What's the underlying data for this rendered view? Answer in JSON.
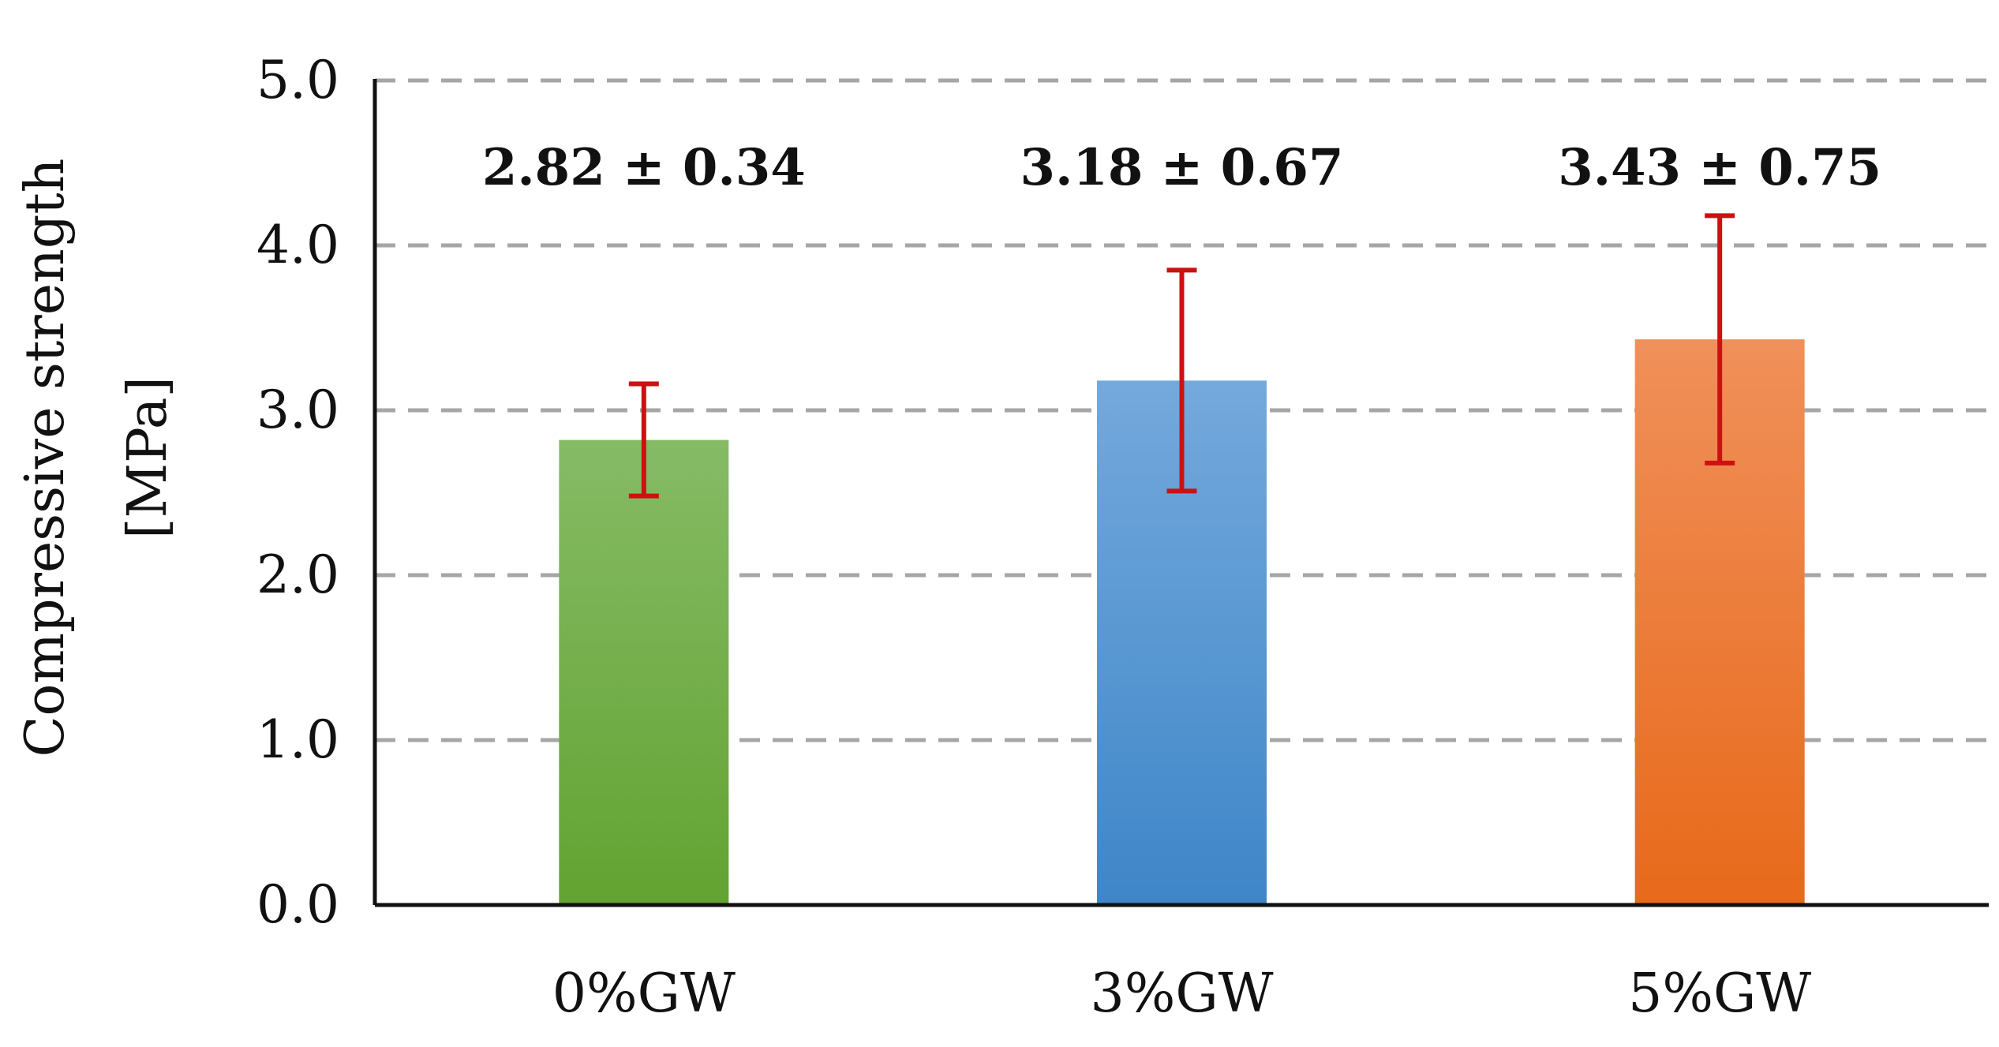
{
  "chart_data": {
    "type": "bar",
    "title": "",
    "xlabel": "",
    "ylabel_line1": "Compressive strength",
    "ylabel_line2": "[MPa]",
    "ylim": [
      0,
      5
    ],
    "yticks": [
      "0.0",
      "1.0",
      "2.0",
      "3.0",
      "4.0",
      "5.0"
    ],
    "grid": "horizontal dashed",
    "categories": [
      "0%GW",
      "3%GW",
      "5%GW"
    ],
    "values": [
      2.82,
      3.18,
      3.43
    ],
    "errors": [
      0.34,
      0.67,
      0.75
    ],
    "data_labels": [
      "2.82 ± 0.34",
      "3.18 ± 0.67",
      "3.43 ± 0.75"
    ],
    "colors": {
      "bars_top": [
        "#86bb66",
        "#74a9dc",
        "#f0905a"
      ],
      "bars_bottom": [
        "#62a331",
        "#3e86c8",
        "#e8691a"
      ],
      "error_bars": "#cc1111",
      "grid": "#a6a6a6",
      "axis": "#111111"
    }
  }
}
